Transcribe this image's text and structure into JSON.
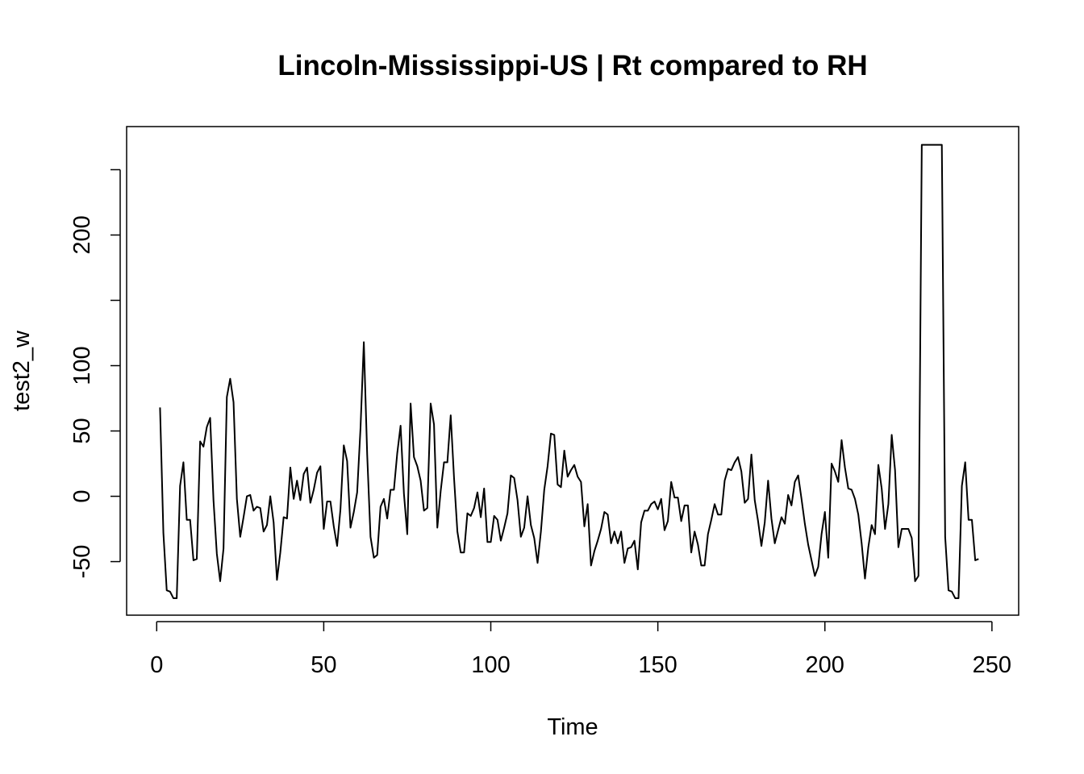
{
  "chart_data": {
    "type": "line",
    "title": "Lincoln-Mississippi-US | Rt compared to RH",
    "xlabel": "Time",
    "ylabel": "test2_w",
    "xlim": [
      -9,
      258
    ],
    "ylim": [
      -91,
      283
    ],
    "x_ticks": [
      0,
      50,
      100,
      150,
      200,
      250
    ],
    "x_tick_labels": [
      "0",
      "50",
      "100",
      "150",
      "200",
      "250"
    ],
    "y_ticks": [
      -50,
      0,
      50,
      100,
      150,
      200,
      250
    ],
    "y_tick_labels": [
      "-50",
      "0",
      "50",
      "100",
      "",
      "200",
      ""
    ],
    "grid": false,
    "legend": "none",
    "line_color": "#000000",
    "series": [
      {
        "x_start": 1,
        "values": [
          68,
          -28,
          -72,
          -73,
          -78,
          -78,
          8,
          26,
          -18,
          -18,
          -49,
          -48,
          42,
          38,
          53,
          60,
          -3,
          -44,
          -65,
          -40,
          76,
          90,
          72,
          -2,
          -31,
          -16,
          0,
          1,
          -11,
          -8,
          -9,
          -27,
          -22,
          0,
          -20,
          -64,
          -43,
          -16,
          -17,
          22,
          -2,
          12,
          -3,
          17,
          22,
          -5,
          5,
          18,
          23,
          -25,
          -4,
          -4,
          -23,
          -38,
          -10,
          39,
          27,
          -24,
          -12,
          3,
          52,
          118,
          32,
          -31,
          -47,
          -45,
          -8,
          -2,
          -17,
          5,
          5,
          33,
          54,
          2,
          -29,
          71,
          30,
          23,
          12,
          -11,
          -9,
          71,
          55,
          -24,
          4,
          26,
          26,
          62,
          14,
          -27,
          -43,
          -43,
          -13,
          -15,
          -9,
          3,
          -16,
          6,
          -35,
          -35,
          -15,
          -18,
          -34,
          -24,
          -13,
          16,
          14,
          -3,
          -31,
          -24,
          0,
          -22,
          -32,
          -51,
          -27,
          5,
          23,
          48,
          47,
          9,
          7,
          35,
          15,
          20,
          24,
          15,
          11,
          -23,
          -6,
          -53,
          -42,
          -34,
          -25,
          -12,
          -14,
          -36,
          -27,
          -36,
          -27,
          -51,
          -40,
          -39,
          -34,
          -56,
          -20,
          -11,
          -11,
          -6,
          -4,
          -10,
          -2,
          -26,
          -19,
          11,
          -1,
          -1,
          -19,
          -7,
          -7,
          -43,
          -27,
          -37,
          -53,
          -53,
          -29,
          -18,
          -6,
          -14,
          -14,
          12,
          21,
          20,
          26,
          30,
          19,
          -5,
          -2,
          32,
          -3,
          -19,
          -38,
          -20,
          12,
          -17,
          -36,
          -26,
          -16,
          -21,
          1,
          -7,
          11,
          16,
          -2,
          -21,
          -37,
          -49,
          -61,
          -54,
          -29,
          -12,
          -47,
          25,
          19,
          11,
          43,
          22,
          6,
          5,
          -2,
          -14,
          -36,
          -63,
          -39,
          -22,
          -29,
          24,
          6,
          -25,
          -6,
          47,
          20,
          -39,
          -25,
          -25,
          -25,
          -32,
          -65,
          -61,
          269,
          269,
          269,
          269,
          269,
          269,
          269,
          -31,
          -72,
          -73,
          -78,
          -78,
          8,
          26,
          -18,
          -18,
          -49,
          -48
        ]
      }
    ]
  }
}
